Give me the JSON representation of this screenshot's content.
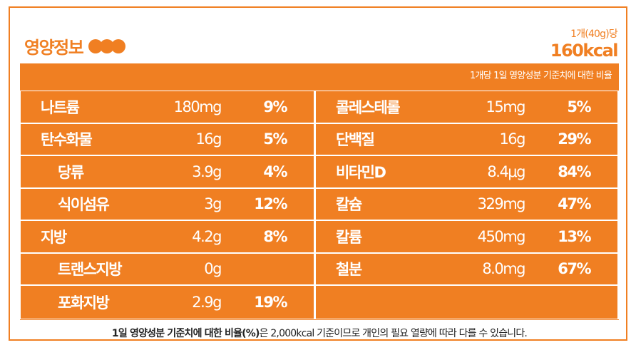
{
  "header": {
    "title": "영양정보",
    "serving_size": "1개(40g)당",
    "calories": "160kcal"
  },
  "panel": {
    "note": "1개당 1일 영양성분 기준치에 대한 비율"
  },
  "left_rows": [
    {
      "name": "나트륨",
      "amount": "180mg",
      "percent": "9%"
    },
    {
      "name": "탄수화물",
      "amount": "16g",
      "percent": "5%"
    },
    {
      "name": "당류",
      "amount": "3.9g",
      "percent": "4%"
    },
    {
      "name": "식이섬유",
      "amount": "3g",
      "percent": "12%"
    },
    {
      "name": "지방",
      "amount": "4.2g",
      "percent": "8%"
    },
    {
      "name": "트랜스지방",
      "amount": "0g",
      "percent": ""
    },
    {
      "name": "포화지방",
      "amount": "2.9g",
      "percent": "19%"
    }
  ],
  "right_rows": [
    {
      "name": "콜레스테롤",
      "amount": "15mg",
      "percent": "5%"
    },
    {
      "name": "단백질",
      "amount": "16g",
      "percent": "29%"
    },
    {
      "name": "비타민D",
      "amount": "8.4μg",
      "percent": "84%"
    },
    {
      "name": "칼슘",
      "amount": "329mg",
      "percent": "47%"
    },
    {
      "name": "칼륨",
      "amount": "450mg",
      "percent": "13%"
    },
    {
      "name": "철분",
      "amount": "8.0mg",
      "percent": "67%"
    },
    {
      "name": "",
      "amount": "",
      "percent": ""
    }
  ],
  "footer": {
    "bold": "1일 영양성분 기준치에 대한 비율(%)",
    "rest": "은 2,000kcal 기준이므로 개인의 필요 열량에 따라 다를 수 있습니다."
  },
  "colors": {
    "accent": "#f07f22",
    "text_on_accent": "#ffffff"
  }
}
